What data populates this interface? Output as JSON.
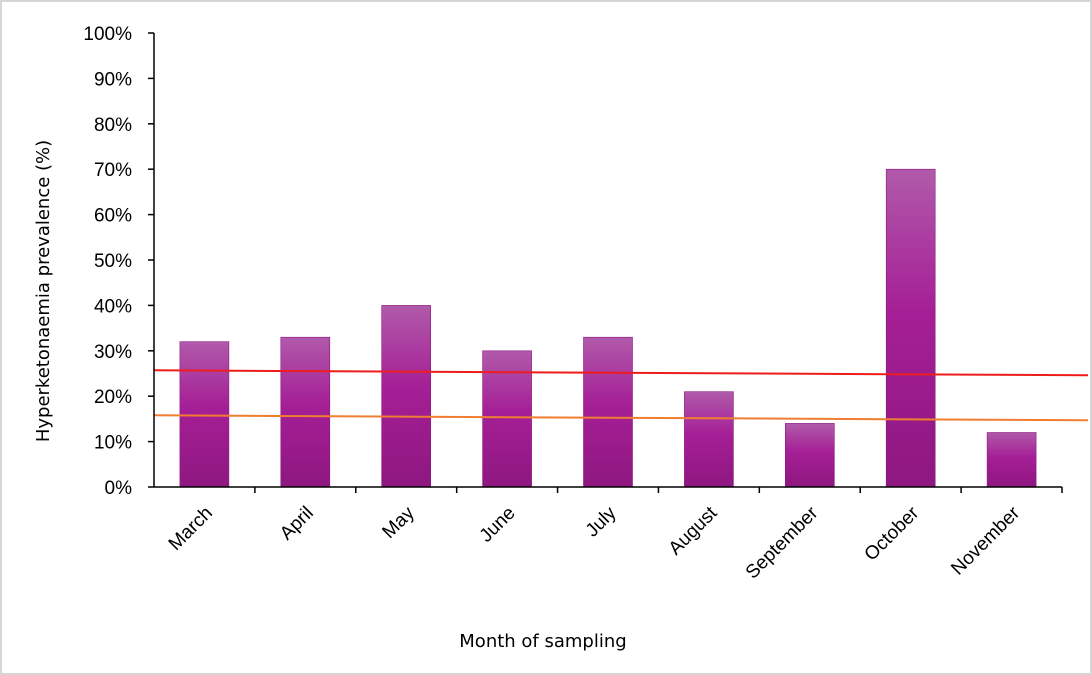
{
  "chart_data": {
    "type": "bar",
    "title": "",
    "xlabel": "Month of sampling",
    "ylabel": "Hyperketonaemia prevalence (%)",
    "ylim": [
      0,
      100
    ],
    "yticks": [
      "0%",
      "10%",
      "20%",
      "30%",
      "40%",
      "50%",
      "60%",
      "70%",
      "80%",
      "90%",
      "100%"
    ],
    "categories": [
      "March",
      "April",
      "May",
      "June",
      "July",
      "August",
      "September",
      "October",
      "November"
    ],
    "values": [
      32,
      33,
      40,
      30,
      33,
      21,
      14,
      70,
      12
    ],
    "bar_color_light": "#b05aaa",
    "bar_color_mid": "#a51f96",
    "bar_color_dark": "#8e1780",
    "reference_lines": [
      {
        "color": "#ee1c1c",
        "start_value": 25.7,
        "end_value": 24.6
      },
      {
        "color": "#ef7d32",
        "start_value": 15.8,
        "end_value": 14.7
      }
    ],
    "grid": false,
    "legend": "none"
  }
}
